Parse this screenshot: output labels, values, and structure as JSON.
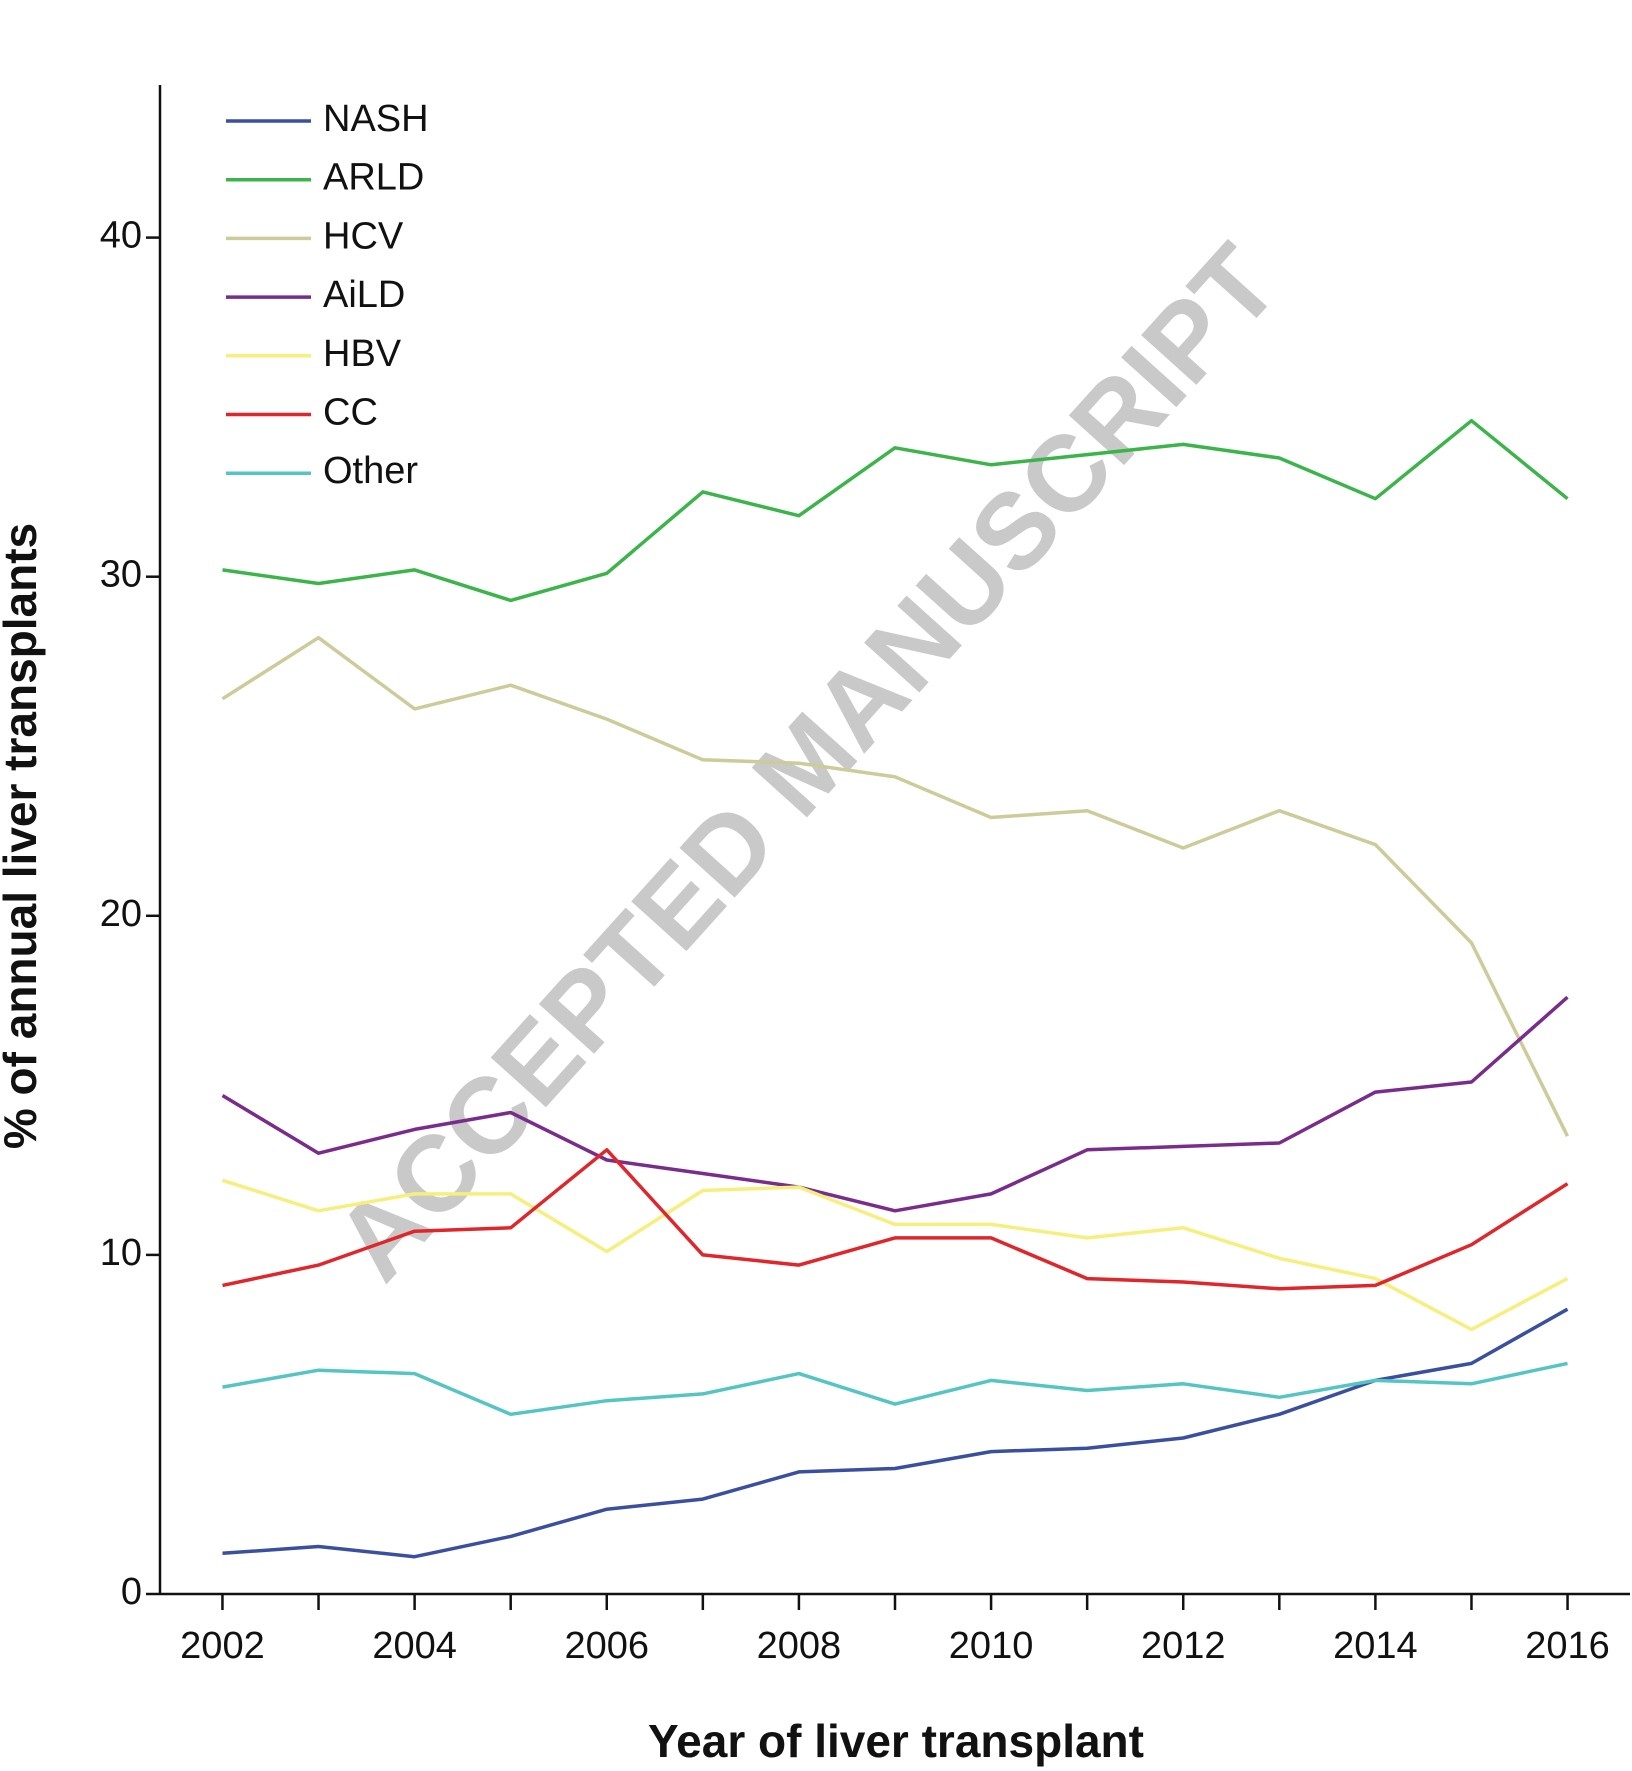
{
  "chart_data": {
    "type": "line",
    "watermark": "ACCEPTED MANUSCRIPT",
    "x_label": "Year of liver transplant",
    "y_label": "% of annual liver transplants",
    "x": [
      2002,
      2003,
      2004,
      2005,
      2006,
      2007,
      2008,
      2009,
      2010,
      2011,
      2012,
      2013,
      2014,
      2015,
      2016
    ],
    "xlim": [
      2001.35,
      2016.65
    ],
    "xticks": [
      2002,
      2004,
      2006,
      2008,
      2010,
      2012,
      2014,
      2016
    ],
    "xminorticks": [
      2003,
      2005,
      2007,
      2009,
      2011,
      2013,
      2015
    ],
    "ylim": [
      0,
      44.5
    ],
    "yticks": [
      0,
      10,
      20,
      30,
      40
    ],
    "legend": "top-left",
    "series": [
      {
        "name": "NASH",
        "color": "#3a4fa0",
        "values": [
          1.2,
          1.4,
          1.1,
          1.7,
          2.5,
          2.8,
          3.6,
          3.7,
          4.2,
          4.3,
          4.6,
          5.3,
          6.3,
          6.8,
          8.4
        ]
      },
      {
        "name": "ARLD",
        "color": "#3bb54a",
        "values": [
          30.2,
          29.8,
          30.2,
          29.3,
          30.1,
          32.5,
          31.8,
          33.8,
          33.3,
          33.6,
          33.9,
          33.5,
          32.3,
          34.6,
          32.3
        ]
      },
      {
        "name": "HCV",
        "color": "#cccb99",
        "values": [
          26.4,
          28.2,
          26.1,
          26.8,
          25.8,
          24.6,
          24.5,
          24.1,
          22.9,
          23.1,
          22.0,
          23.1,
          22.1,
          19.2,
          13.5
        ]
      },
      {
        "name": "AiLD",
        "color": "#7a2c8c",
        "values": [
          14.7,
          13.0,
          13.7,
          14.2,
          12.8,
          12.4,
          12.0,
          11.3,
          11.8,
          13.1,
          13.2,
          13.3,
          14.8,
          15.1,
          17.6
        ]
      },
      {
        "name": "HBV",
        "color": "#f6ef7e",
        "values": [
          12.2,
          11.3,
          11.8,
          11.8,
          10.1,
          11.9,
          12.0,
          10.9,
          10.9,
          10.5,
          10.8,
          9.9,
          9.3,
          7.8,
          9.3
        ]
      },
      {
        "name": "CC",
        "color": "#e0262a",
        "values": [
          9.1,
          9.7,
          10.7,
          10.8,
          13.1,
          10.0,
          9.7,
          10.5,
          10.5,
          9.3,
          9.2,
          9.0,
          9.1,
          10.3,
          12.1
        ]
      },
      {
        "name": "Other",
        "color": "#55c5c3",
        "values": [
          6.1,
          6.6,
          6.5,
          5.3,
          5.7,
          5.9,
          6.5,
          5.6,
          6.3,
          6.0,
          6.2,
          5.8,
          6.3,
          6.2,
          6.8
        ]
      }
    ]
  }
}
